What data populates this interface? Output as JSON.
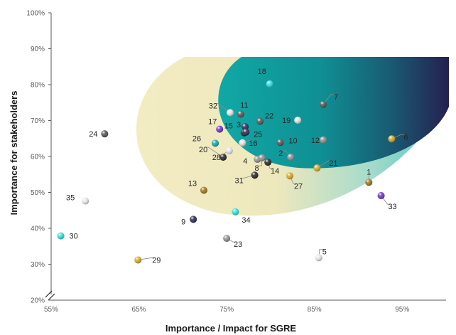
{
  "chart_data": {
    "type": "scatter",
    "xlabel": "Importance  / Impact for SGRE",
    "ylabel": "Importance for stakeholders",
    "xlim": [
      55,
      100
    ],
    "ylim": [
      20,
      100
    ],
    "x_ticks": [
      "55%",
      "65%",
      "75%",
      "85%",
      "95%"
    ],
    "y_ticks": [
      "20%",
      "30%",
      "40%",
      "50%",
      "60%",
      "70%",
      "80%",
      "90%",
      "100%"
    ],
    "grid": false,
    "legend": "none",
    "colors": {
      "teal": "#13a7a4",
      "navy": "#232352",
      "cream": "#f3ecc3",
      "grey": "#8f8f8f",
      "dark_grey": "#4f4f4f",
      "black": "#1f1f1f",
      "gold": "#d9a521",
      "brown": "#9b7417",
      "purple": "#6a2ec7",
      "cyan": "#2ee0e0",
      "light": "#e6e6e6"
    },
    "points": [
      {
        "label": "1",
        "x": 91.2,
        "y": 52.8,
        "color": "brown"
      },
      {
        "label": "2",
        "x": 82.3,
        "y": 59.8,
        "color": "grey"
      },
      {
        "label": "3",
        "x": 77.1,
        "y": 68.3,
        "color": "navy"
      },
      {
        "label": "4",
        "x": 78.5,
        "y": 59.2,
        "color": "grey"
      },
      {
        "label": "5",
        "x": 85.5,
        "y": 31.8,
        "color": "light"
      },
      {
        "label": "6",
        "x": 93.8,
        "y": 64.9,
        "color": "gold"
      },
      {
        "label": "7",
        "x": 86.0,
        "y": 74.5,
        "color": "dark_grey"
      },
      {
        "label": "8",
        "x": 79.0,
        "y": 59.6,
        "color": "grey"
      },
      {
        "label": "9",
        "x": 71.2,
        "y": 42.5,
        "color": "navy"
      },
      {
        "label": "10",
        "x": 81.1,
        "y": 63.9,
        "color": "dark_grey"
      },
      {
        "label": "11",
        "x": 76.6,
        "y": 71.8,
        "color": "dark_grey"
      },
      {
        "label": "12",
        "x": 86.0,
        "y": 64.6,
        "color": "grey"
      },
      {
        "label": "13",
        "x": 72.4,
        "y": 50.6,
        "color": "brown"
      },
      {
        "label": "14",
        "x": 79.7,
        "y": 58.4,
        "color": "black"
      },
      {
        "label": "15",
        "x": 77.0,
        "y": 66.6,
        "color": "black"
      },
      {
        "label": "16",
        "x": 76.8,
        "y": 63.8,
        "color": "light"
      },
      {
        "label": "17",
        "x": 74.2,
        "y": 67.6,
        "color": "purple"
      },
      {
        "label": "18",
        "x": 79.9,
        "y": 80.2,
        "color": "cyan"
      },
      {
        "label": "19",
        "x": 83.1,
        "y": 70.1,
        "color": "light"
      },
      {
        "label": "20",
        "x": 74.6,
        "y": 59.8,
        "color": "black"
      },
      {
        "label": "21",
        "x": 85.3,
        "y": 56.8,
        "color": "gold"
      },
      {
        "label": "22",
        "x": 78.8,
        "y": 69.8,
        "color": "dark_grey"
      },
      {
        "label": "23",
        "x": 75.0,
        "y": 37.2,
        "color": "grey"
      },
      {
        "label": "24",
        "x": 61.1,
        "y": 66.3,
        "color": "dark_grey"
      },
      {
        "label": "25",
        "x": 77.2,
        "y": 66.8,
        "color": "navy"
      },
      {
        "label": "26",
        "x": 73.7,
        "y": 63.7,
        "color": "teal"
      },
      {
        "label": "27",
        "x": 82.2,
        "y": 54.6,
        "color": "gold"
      },
      {
        "label": "28",
        "x": 75.3,
        "y": 61.6,
        "color": "light"
      },
      {
        "label": "29",
        "x": 64.9,
        "y": 31.2,
        "color": "gold"
      },
      {
        "label": "30",
        "x": 56.1,
        "y": 37.9,
        "color": "cyan"
      },
      {
        "label": "31",
        "x": 78.2,
        "y": 54.8,
        "color": "black"
      },
      {
        "label": "32",
        "x": 75.4,
        "y": 72.2,
        "color": "light"
      },
      {
        "label": "33",
        "x": 92.6,
        "y": 49.1,
        "color": "purple"
      },
      {
        "label": "34",
        "x": 76.0,
        "y": 44.6,
        "color": "cyan"
      },
      {
        "label": "35",
        "x": 58.9,
        "y": 47.6,
        "color": "light"
      }
    ]
  }
}
